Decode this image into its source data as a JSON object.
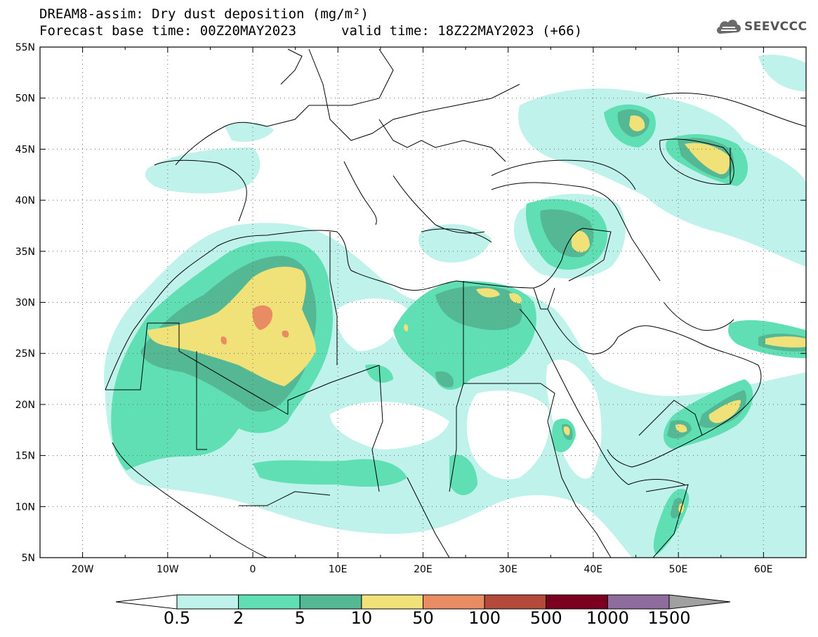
{
  "title": {
    "line1": "DREAM8-assim: Dry dust deposition (mg/m²)",
    "line2_left": "Forecast base time: 00Z20MAY2023",
    "line2_right": "valid time: 18Z22MAY2023 (+66)"
  },
  "logo": {
    "text": "SEEVCCC",
    "icon": "cloud-icon"
  },
  "map": {
    "lon_range": [
      -25,
      65
    ],
    "lat_range": [
      5,
      55
    ],
    "lat_ticks": [
      "5N",
      "10N",
      "15N",
      "20N",
      "25N",
      "30N",
      "35N",
      "40N",
      "45N",
      "50N",
      "55N"
    ],
    "lon_ticks": [
      "20W",
      "10W",
      "0",
      "10E",
      "20E",
      "30E",
      "40E",
      "50E",
      "60E"
    ],
    "grid": "dotted"
  },
  "legend": {
    "labels": [
      "0.5",
      "2",
      "5",
      "10",
      "50",
      "100",
      "500",
      "1000",
      "1500"
    ],
    "colors": [
      "#bff2ea",
      "#5fdfb3",
      "#55b894",
      "#f0e178",
      "#e98b63",
      "#b34a3c",
      "#7c0020",
      "#8f6c9e",
      "#a0a0a0"
    ]
  }
}
